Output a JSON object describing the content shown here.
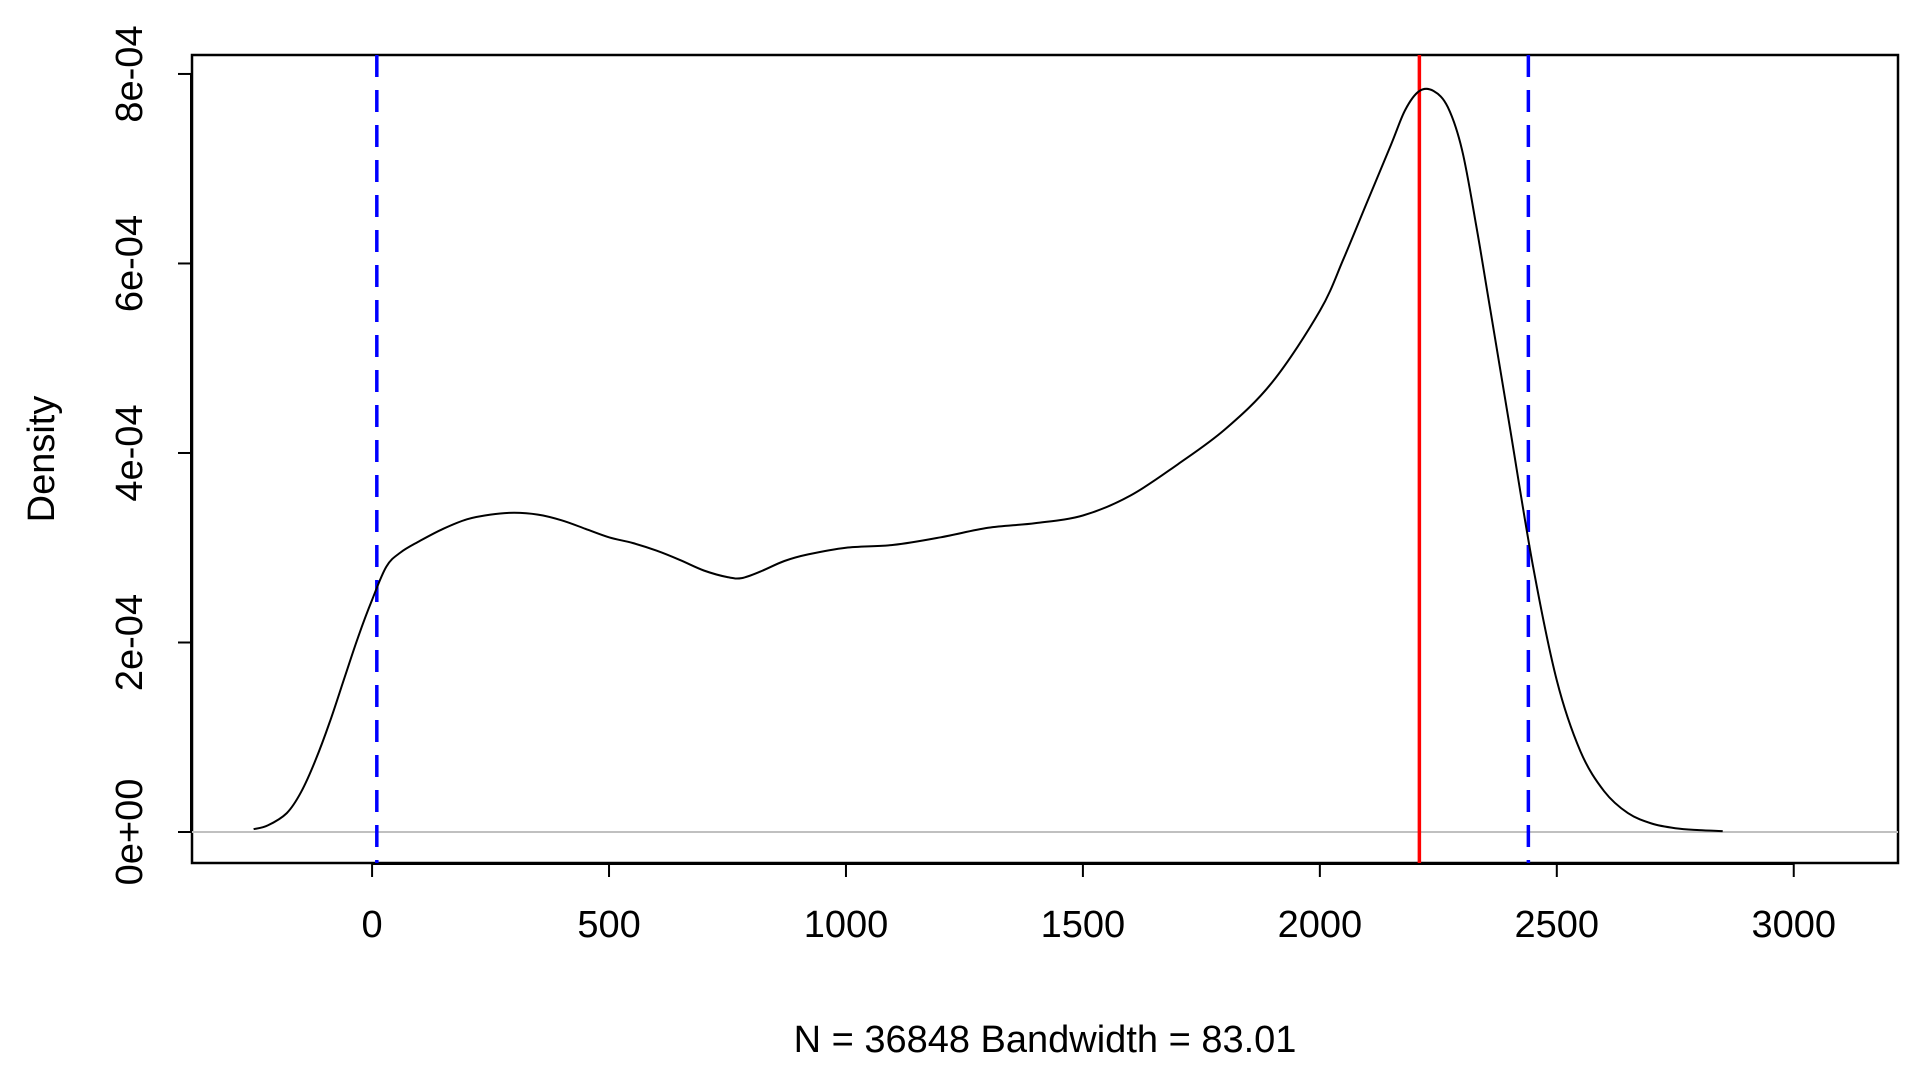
{
  "chart_data": {
    "type": "line",
    "title": "",
    "xlabel": "N = 36848   Bandwidth = 83.01",
    "ylabel": "Density",
    "xlim": [
      -380,
      3220
    ],
    "ylim": [
      -3.27e-05,
      0.00082
    ],
    "grid": false,
    "legend": "none",
    "x_ticks": [
      {
        "value": 0,
        "label": "0"
      },
      {
        "value": 500,
        "label": "500"
      },
      {
        "value": 1000,
        "label": "1000"
      },
      {
        "value": 1500,
        "label": "1500"
      },
      {
        "value": 2000,
        "label": "2000"
      },
      {
        "value": 2500,
        "label": "2500"
      },
      {
        "value": 3000,
        "label": "3000"
      }
    ],
    "y_ticks": [
      {
        "value": 0,
        "label": "0e+00"
      },
      {
        "value": 0.0002,
        "label": "2e-04"
      },
      {
        "value": 0.0004,
        "label": "4e-04"
      },
      {
        "value": 0.0006,
        "label": "6e-04"
      },
      {
        "value": 0.0008,
        "label": "8e-04"
      }
    ],
    "series": [
      {
        "color": "#000000",
        "x": [
          -250,
          -220,
          -180,
          -150,
          -120,
          -90,
          -60,
          -30,
          0,
          30,
          60,
          100,
          150,
          200,
          250,
          300,
          350,
          400,
          450,
          500,
          550,
          600,
          650,
          700,
          750,
          780,
          820,
          870,
          920,
          1000,
          1100,
          1200,
          1300,
          1400,
          1500,
          1600,
          1700,
          1800,
          1900,
          2000,
          2050,
          2100,
          2150,
          2180,
          2210,
          2240,
          2270,
          2300,
          2330,
          2360,
          2400,
          2450,
          2500,
          2550,
          2600,
          2650,
          2700,
          2750,
          2800,
          2850
        ],
        "y": [
          3e-06,
          7e-06,
          2e-05,
          4.2e-05,
          7.5e-05,
          0.000115,
          0.00016,
          0.000205,
          0.000245,
          0.00028,
          0.000295,
          0.000307,
          0.00032,
          0.00033,
          0.000335,
          0.000337,
          0.000335,
          0.000329,
          0.00032,
          0.000311,
          0.000305,
          0.000297,
          0.000287,
          0.000276,
          0.000269,
          0.000268,
          0.000275,
          0.000286,
          0.000293,
          0.0003,
          0.000303,
          0.000311,
          0.000321,
          0.000326,
          0.000334,
          0.000355,
          0.000388,
          0.000425,
          0.000475,
          0.00055,
          0.000605,
          0.000665,
          0.000725,
          0.000762,
          0.000782,
          0.000782,
          0.000765,
          0.00072,
          0.00064,
          0.00055,
          0.00043,
          0.00028,
          0.00016,
          8.5e-05,
          4.3e-05,
          2e-05,
          9e-06,
          4e-06,
          2e-06,
          1e-06
        ]
      }
    ],
    "reference_lines": [
      {
        "axis": "y",
        "value": 0,
        "color": "#c0c0c0",
        "style": "solid"
      },
      {
        "axis": "x",
        "value": 10,
        "color": "#0000ff",
        "style": "dashed"
      },
      {
        "axis": "x",
        "value": 2210,
        "color": "#ff0000",
        "style": "solid"
      },
      {
        "axis": "x",
        "value": 2440,
        "color": "#0000ff",
        "style": "dashed"
      }
    ]
  }
}
